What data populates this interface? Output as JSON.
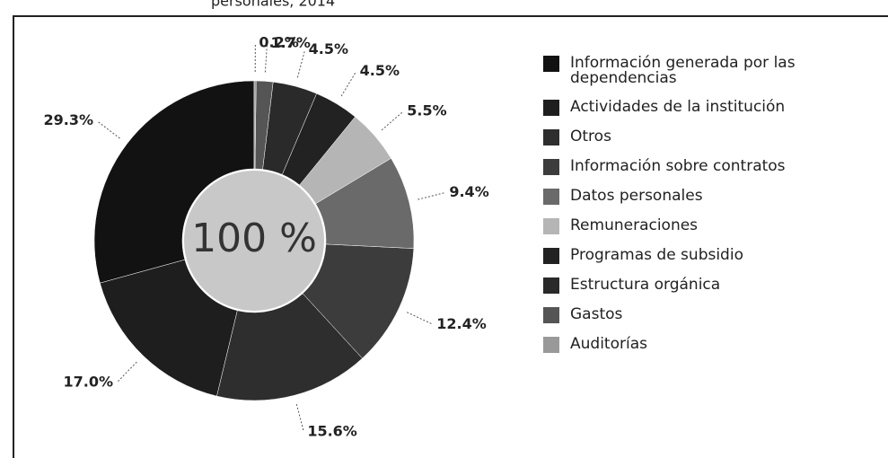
{
  "chart_data": {
    "type": "pie",
    "subtitle": "personales, 2014",
    "center_label": "100 %",
    "categories": [
      "Información generada por las dependencias",
      "Actividades de la institución",
      "Otros",
      "Información sobre contratos",
      "Datos personales",
      "Remuneraciones",
      "Programas de subsidio",
      "Estructura orgánica",
      "Gastos",
      "Auditorías"
    ],
    "values": [
      29.3,
      17.0,
      15.6,
      12.4,
      9.4,
      5.5,
      4.5,
      4.5,
      1.7,
      0.2
    ],
    "value_labels": [
      "29.3%",
      "17.0%",
      "15.6%",
      "12.4%",
      "9.4%",
      "5.5%",
      "4.5%",
      "4.5%",
      "1.7%",
      "0.2%"
    ],
    "colors": [
      "#121212",
      "#1e1e1e",
      "#2e2e2e",
      "#3c3c3c",
      "#6a6a6a",
      "#b5b5b5",
      "#222222",
      "#2a2a2a",
      "#555555",
      "#999999"
    ],
    "legend": "right"
  }
}
